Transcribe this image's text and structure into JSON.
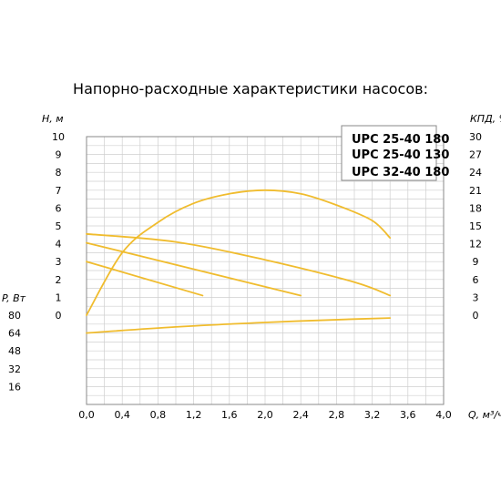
{
  "chart_data": {
    "type": "line",
    "title": "Напорно-расходные характеристики насосов:",
    "xlabel": "Q, м³/ч",
    "ylabel_head": "Н, м",
    "ylabel_eff": "КПД, %",
    "ylabel_power": "P, Вт",
    "x_ticks": [
      "0,0",
      "0,4",
      "0,8",
      "1,2",
      "1,6",
      "2,0",
      "2,4",
      "2,8",
      "3,2",
      "3,6",
      "4,0"
    ],
    "head_ticks": [
      "0",
      "1",
      "2",
      "3",
      "4",
      "5",
      "6",
      "7",
      "8",
      "9",
      "10"
    ],
    "eff_ticks": [
      "0",
      "3",
      "6",
      "9",
      "12",
      "15",
      "18",
      "21",
      "24",
      "27",
      "30"
    ],
    "power_ticks": [
      "16",
      "32",
      "48",
      "64",
      "80"
    ],
    "xlim": [
      0,
      4.0
    ],
    "head_ylim": [
      0,
      10
    ],
    "eff_ylim": [
      0,
      30
    ],
    "power_ylim": [
      0,
      80
    ],
    "legend": [
      "UPC 25-40 180",
      "UPC 25-40 130",
      "UPC 32-40 180"
    ],
    "series": [
      {
        "axis": "head",
        "x": [
          0,
          1.3
        ],
        "y": [
          3.0,
          1.1
        ]
      },
      {
        "axis": "head",
        "x": [
          0,
          2.4
        ],
        "y": [
          4.05,
          1.1
        ]
      },
      {
        "axis": "head",
        "x": [
          0,
          1.0,
          2.0,
          3.0,
          3.4
        ],
        "y": [
          4.55,
          4.1,
          3.1,
          1.85,
          1.1
        ]
      },
      {
        "axis": "eff",
        "x": [
          0,
          0.4,
          0.8,
          1.2,
          1.6,
          2.0,
          2.4,
          2.8,
          3.2,
          3.4
        ],
        "y": [
          0,
          10.5,
          15.6,
          18.8,
          20.4,
          21.0,
          20.4,
          18.5,
          15.9,
          13.0
        ]
      },
      {
        "axis": "power",
        "x": [
          0,
          1.0,
          2.0,
          3.0,
          3.4
        ],
        "y": [
          64,
          69.5,
          73.5,
          76.5,
          77.5
        ]
      }
    ],
    "line_color": "#f0bc2e",
    "grid": true
  }
}
